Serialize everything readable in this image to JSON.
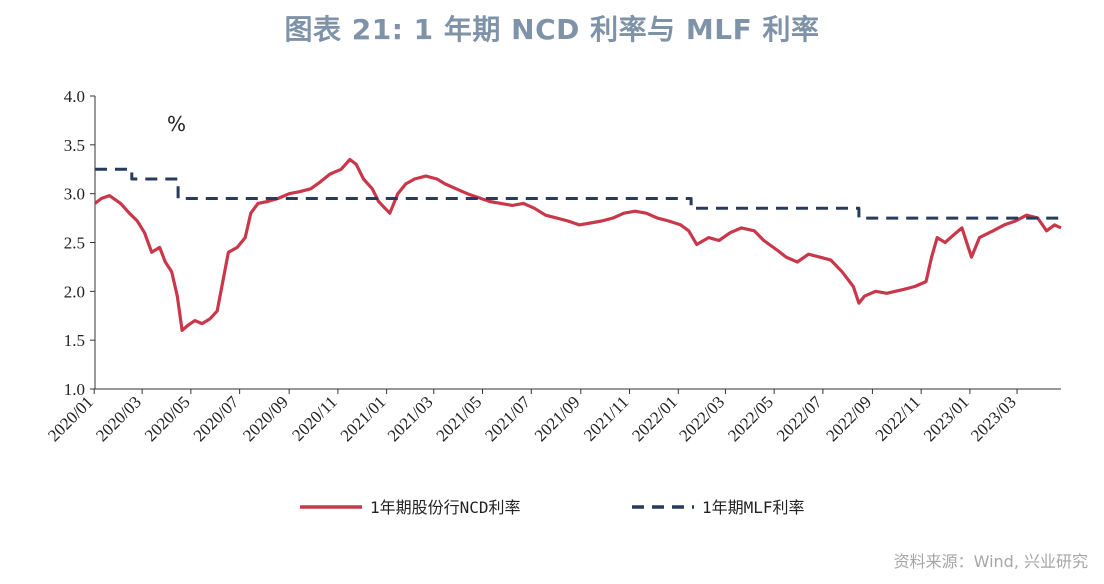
{
  "title": "图表 21: 1 年期 NCD 利率与 MLF 利率",
  "source": "资料来源：Wind, 兴业研究",
  "colors": {
    "ncd": "#c8384a",
    "mlf": "#283b5c",
    "title": "#7f93a8",
    "axis": "#333333"
  },
  "chart_data": {
    "type": "line",
    "title": "图表 21: 1 年期 NCD 利率与 MLF 利率",
    "unit_label": "%",
    "ylim": [
      1.0,
      4.0
    ],
    "yticks": [
      "1.0",
      "1.5",
      "2.0",
      "2.5",
      "3.0",
      "3.5",
      "4.0"
    ],
    "xlim": [
      "2020-01-02",
      "2023-04-25"
    ],
    "xticks": [
      "2020/01",
      "2020/03",
      "2020/05",
      "2020/07",
      "2020/09",
      "2020/11",
      "2021/01",
      "2021/03",
      "2021/05",
      "2021/07",
      "2021/09",
      "2021/11",
      "2022/01",
      "2022/03",
      "2022/05",
      "2022/07",
      "2022/09",
      "2022/11",
      "2023/01",
      "2023/03"
    ],
    "grid": false,
    "legend_position": "bottom",
    "series": [
      {
        "name": "1年期股份行NCD利率",
        "style": "solid",
        "color": "#c8384a",
        "points": [
          [
            "2020-01-02",
            2.9
          ],
          [
            "2020-01-10",
            2.95
          ],
          [
            "2020-01-20",
            2.98
          ],
          [
            "2020-02-03",
            2.9
          ],
          [
            "2020-02-14",
            2.8
          ],
          [
            "2020-02-24",
            2.72
          ],
          [
            "2020-03-04",
            2.6
          ],
          [
            "2020-03-13",
            2.4
          ],
          [
            "2020-03-23",
            2.45
          ],
          [
            "2020-03-30",
            2.3
          ],
          [
            "2020-04-07",
            2.2
          ],
          [
            "2020-04-14",
            1.95
          ],
          [
            "2020-04-20",
            1.6
          ],
          [
            "2020-04-27",
            1.65
          ],
          [
            "2020-05-06",
            1.7
          ],
          [
            "2020-05-15",
            1.67
          ],
          [
            "2020-05-25",
            1.72
          ],
          [
            "2020-06-03",
            1.8
          ],
          [
            "2020-06-10",
            2.1
          ],
          [
            "2020-06-17",
            2.4
          ],
          [
            "2020-06-28",
            2.45
          ],
          [
            "2020-07-08",
            2.55
          ],
          [
            "2020-07-15",
            2.8
          ],
          [
            "2020-07-24",
            2.9
          ],
          [
            "2020-08-05",
            2.92
          ],
          [
            "2020-08-18",
            2.95
          ],
          [
            "2020-09-01",
            3.0
          ],
          [
            "2020-09-14",
            3.02
          ],
          [
            "2020-09-28",
            3.05
          ],
          [
            "2020-10-10",
            3.12
          ],
          [
            "2020-10-22",
            3.2
          ],
          [
            "2020-11-05",
            3.25
          ],
          [
            "2020-11-16",
            3.35
          ],
          [
            "2020-11-24",
            3.3
          ],
          [
            "2020-12-03",
            3.15
          ],
          [
            "2020-12-14",
            3.05
          ],
          [
            "2020-12-22",
            2.92
          ],
          [
            "2021-01-05",
            2.8
          ],
          [
            "2021-01-15",
            3.0
          ],
          [
            "2021-01-25",
            3.1
          ],
          [
            "2021-02-05",
            3.15
          ],
          [
            "2021-02-19",
            3.18
          ],
          [
            "2021-03-05",
            3.15
          ],
          [
            "2021-03-15",
            3.1
          ],
          [
            "2021-03-29",
            3.05
          ],
          [
            "2021-04-12",
            3.0
          ],
          [
            "2021-04-26",
            2.96
          ],
          [
            "2021-05-10",
            2.92
          ],
          [
            "2021-05-24",
            2.9
          ],
          [
            "2021-06-07",
            2.88
          ],
          [
            "2021-06-21",
            2.9
          ],
          [
            "2021-07-05",
            2.85
          ],
          [
            "2021-07-19",
            2.78
          ],
          [
            "2021-08-02",
            2.75
          ],
          [
            "2021-08-16",
            2.72
          ],
          [
            "2021-08-30",
            2.68
          ],
          [
            "2021-09-13",
            2.7
          ],
          [
            "2021-09-27",
            2.72
          ],
          [
            "2021-10-11",
            2.75
          ],
          [
            "2021-10-25",
            2.8
          ],
          [
            "2021-11-08",
            2.82
          ],
          [
            "2021-11-22",
            2.8
          ],
          [
            "2021-12-06",
            2.75
          ],
          [
            "2021-12-20",
            2.72
          ],
          [
            "2022-01-04",
            2.68
          ],
          [
            "2022-01-14",
            2.62
          ],
          [
            "2022-01-24",
            2.48
          ],
          [
            "2022-02-08",
            2.55
          ],
          [
            "2022-02-21",
            2.52
          ],
          [
            "2022-03-07",
            2.6
          ],
          [
            "2022-03-21",
            2.65
          ],
          [
            "2022-04-06",
            2.62
          ],
          [
            "2022-04-18",
            2.52
          ],
          [
            "2022-05-05",
            2.42
          ],
          [
            "2022-05-16",
            2.35
          ],
          [
            "2022-05-30",
            2.3
          ],
          [
            "2022-06-13",
            2.38
          ],
          [
            "2022-06-27",
            2.35
          ],
          [
            "2022-07-11",
            2.32
          ],
          [
            "2022-07-25",
            2.2
          ],
          [
            "2022-08-08",
            2.05
          ],
          [
            "2022-08-15",
            1.88
          ],
          [
            "2022-08-22",
            1.95
          ],
          [
            "2022-09-05",
            2.0
          ],
          [
            "2022-09-19",
            1.98
          ],
          [
            "2022-10-10",
            2.02
          ],
          [
            "2022-10-24",
            2.05
          ],
          [
            "2022-11-07",
            2.1
          ],
          [
            "2022-11-14",
            2.35
          ],
          [
            "2022-11-21",
            2.55
          ],
          [
            "2022-12-01",
            2.5
          ],
          [
            "2022-12-12",
            2.58
          ],
          [
            "2022-12-22",
            2.65
          ],
          [
            "2023-01-03",
            2.35
          ],
          [
            "2023-01-13",
            2.55
          ],
          [
            "2023-01-30",
            2.62
          ],
          [
            "2023-02-13",
            2.68
          ],
          [
            "2023-02-27",
            2.72
          ],
          [
            "2023-03-13",
            2.78
          ],
          [
            "2023-03-27",
            2.75
          ],
          [
            "2023-04-07",
            2.62
          ],
          [
            "2023-04-17",
            2.68
          ],
          [
            "2023-04-25",
            2.65
          ]
        ]
      },
      {
        "name": "1年期MLF利率",
        "style": "dashed",
        "color": "#283b5c",
        "points": [
          [
            "2020-01-02",
            3.25
          ],
          [
            "2020-02-17",
            3.25
          ],
          [
            "2020-02-17",
            3.15
          ],
          [
            "2020-04-15",
            3.15
          ],
          [
            "2020-04-15",
            2.95
          ],
          [
            "2022-01-17",
            2.95
          ],
          [
            "2022-01-17",
            2.85
          ],
          [
            "2022-08-15",
            2.85
          ],
          [
            "2022-08-15",
            2.75
          ],
          [
            "2023-04-25",
            2.75
          ]
        ]
      }
    ]
  }
}
